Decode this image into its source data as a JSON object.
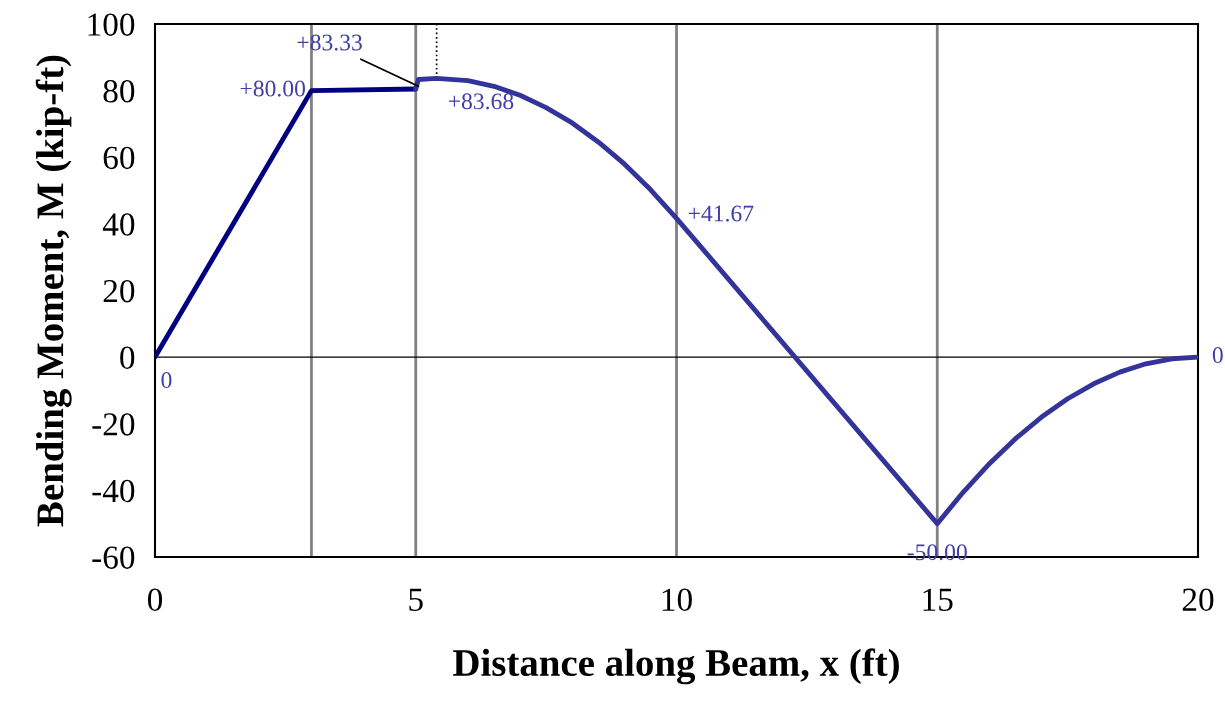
{
  "chart_data": {
    "type": "line",
    "xlabel": "Distance along Beam, x (ft)",
    "ylabel": "Bending Moment, M (kip-ft)",
    "xlim": [
      0,
      20
    ],
    "xticks": [
      0,
      5,
      10,
      15,
      20
    ],
    "ylim": [
      -60,
      100
    ],
    "yticks": [
      -60,
      -40,
      -20,
      0,
      20,
      40,
      60,
      80,
      100
    ],
    "grid": false,
    "legend": false,
    "marker": "none",
    "line_style": "solid",
    "series": [
      {
        "color": "#000080",
        "x": [
          0,
          3,
          5
        ],
        "values": [
          0,
          80,
          80.5
        ]
      },
      {
        "color": "#333399",
        "x": [
          5,
          5.05,
          5.4,
          6,
          6.5,
          7,
          7.5,
          8,
          8.5,
          9,
          9.5,
          10,
          15,
          15.5,
          16,
          16.5,
          17,
          17.5,
          18,
          18.5,
          19,
          19.5,
          20
        ],
        "values": [
          80.5,
          83.33,
          83.68,
          83,
          81.3,
          78.6,
          74.9,
          70.3,
          64.6,
          58,
          50.3,
          41.67,
          -50,
          -40.5,
          -32,
          -24.5,
          -18,
          -12.5,
          -8,
          -4.5,
          -2,
          -0.5,
          0
        ]
      },
      {
        "color": "#000000",
        "line_style": "dotted",
        "x": [
          5.4,
          5.4
        ],
        "values": [
          85,
          100
        ]
      }
    ],
    "ref_lines": [
      {
        "axis": "x",
        "value": 3,
        "color": "#808080"
      },
      {
        "axis": "x",
        "value": 5,
        "color": "#808080"
      },
      {
        "axis": "x",
        "value": 10,
        "color": "#808080"
      },
      {
        "axis": "x",
        "value": 15,
        "color": "#808080"
      },
      {
        "axis": "y",
        "value": 0,
        "color": "#000000"
      }
    ],
    "annotations": [
      {
        "text": "0",
        "x": 0,
        "y": 0
      },
      {
        "text": "+80.00",
        "x": 3,
        "y": 80
      },
      {
        "text": "+83.33",
        "x": 5.05,
        "y": 83.33
      },
      {
        "text": "+83.68",
        "x": 5.4,
        "y": 83.68
      },
      {
        "text": "+41.67",
        "x": 10,
        "y": 41.67
      },
      {
        "text": "-50.00",
        "x": 15,
        "y": -50
      },
      {
        "text": "0",
        "x": 20,
        "y": 0
      }
    ]
  }
}
